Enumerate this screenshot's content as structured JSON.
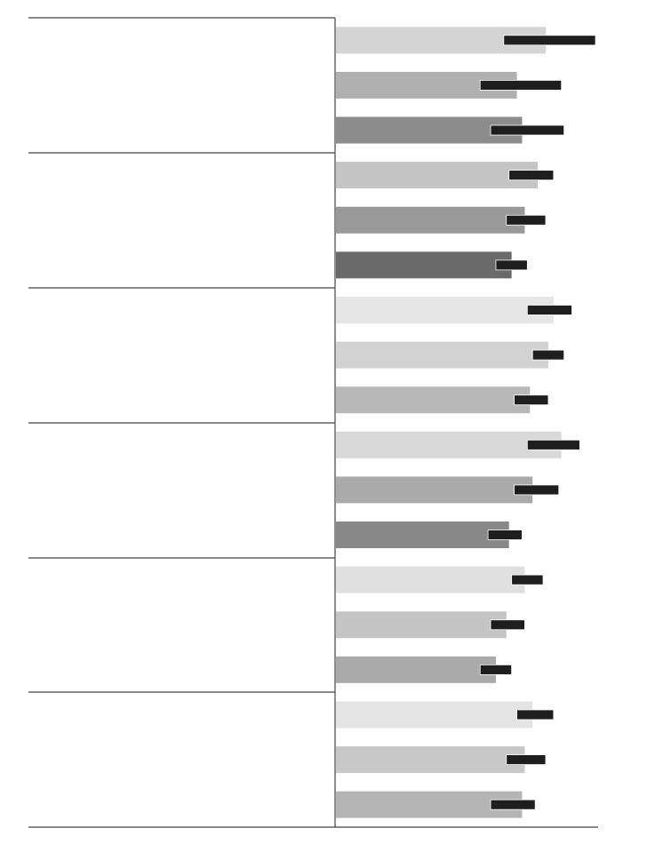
{
  "chart_data": {
    "type": "hbar",
    "categories": [
      null,
      null,
      null,
      null,
      null,
      null,
      null,
      null,
      null,
      null,
      null,
      null,
      null,
      null,
      null,
      null,
      null,
      null
    ],
    "values": [
      80,
      69,
      71,
      77,
      72,
      67,
      83,
      81,
      74,
      86,
      75,
      66,
      72,
      65,
      61,
      75,
      72,
      71
    ],
    "low": [
      64,
      55,
      59,
      66,
      65,
      61,
      73,
      75,
      68,
      73,
      68,
      58,
      67,
      59,
      55,
      69,
      65,
      59
    ],
    "high": [
      99,
      86,
      87,
      83,
      80,
      73,
      90,
      87,
      81,
      93,
      85,
      71,
      79,
      72,
      67,
      83,
      80,
      76
    ],
    "colors": [
      "#d4d4d4",
      "#b0b0b0",
      "#8c8c8c",
      "#c4c4c4",
      "#999999",
      "#6a6a6a",
      "#e6e6e6",
      "#d2d2d2",
      "#b8b8b8",
      "#d8d8d8",
      "#aaaaaa",
      "#888888",
      "#e0e0e0",
      "#c4c4c4",
      "#aaaaaa",
      "#e4e4e4",
      "#c8c8c8",
      "#b4b4b4"
    ],
    "interval_color": "#1e1e1e",
    "xlim": [
      0,
      100
    ]
  }
}
